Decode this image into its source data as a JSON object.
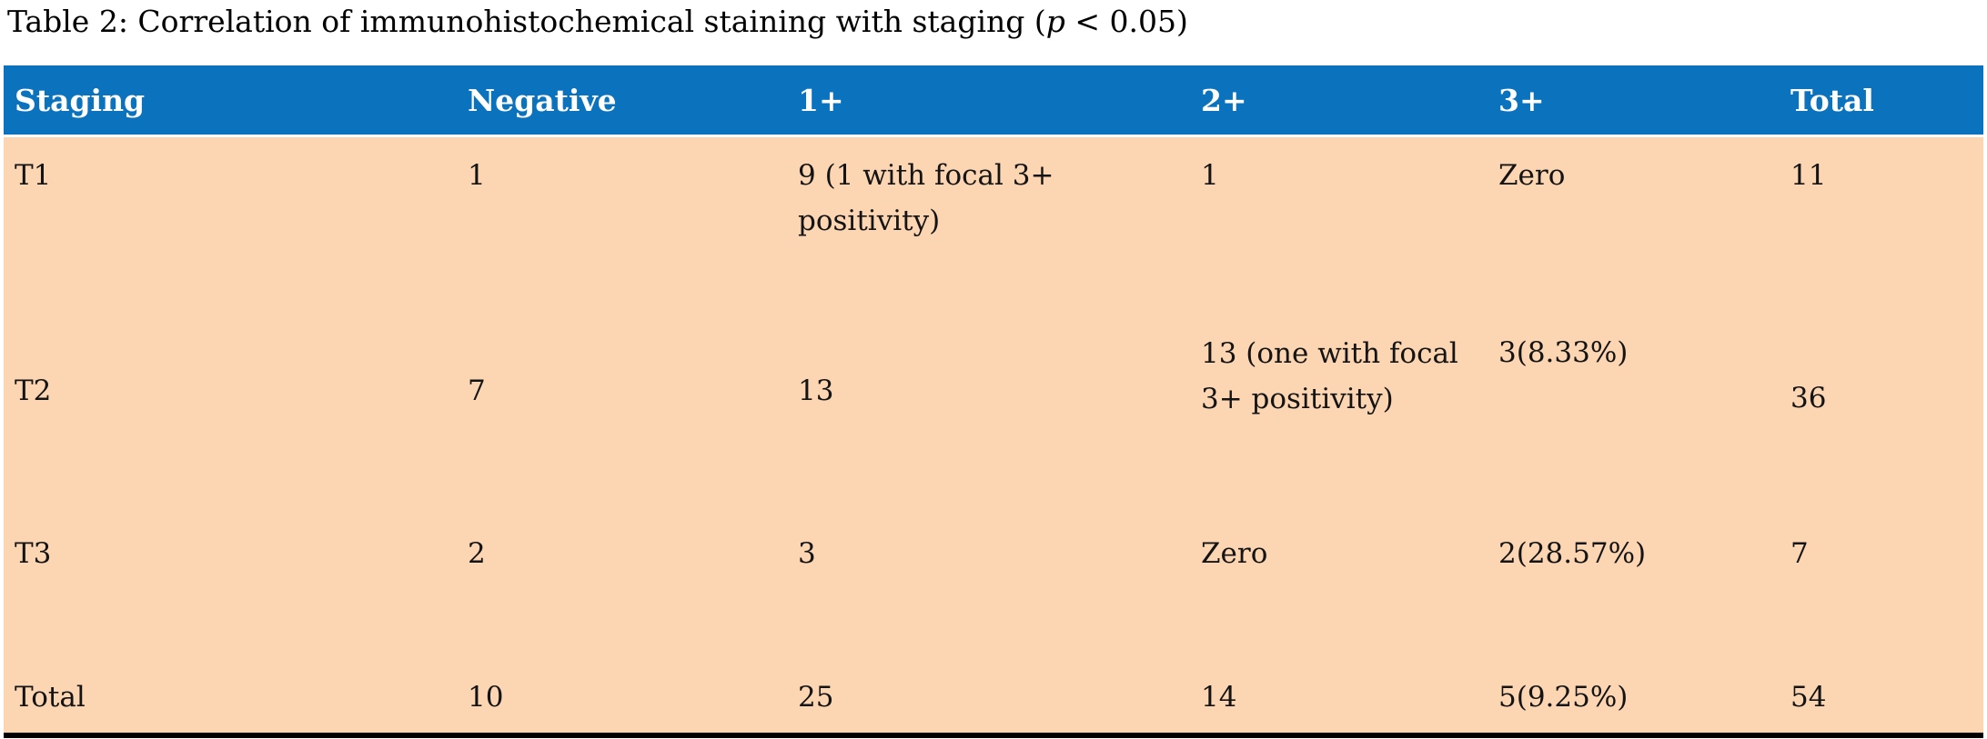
{
  "caption": {
    "before_p": "Table 2: Correlation of immunohistochemical staining with staging (",
    "p_var": "p",
    "after_p": " < 0.05)"
  },
  "colors": {
    "header_bg": "#0B72BD",
    "header_text": "#FFFFFF",
    "body_bg": "#FCD5B2",
    "body_text": "#141414",
    "bottom_rule": "#000000"
  },
  "table": {
    "columns": [
      "Staging",
      "Negative",
      "1+",
      "2+",
      "3+",
      "Total"
    ],
    "rows": [
      {
        "staging": "T1",
        "negative": "1",
        "one_plus": "9 (1 with focal 3+ positivity)",
        "two_plus": "1",
        "three_plus": "Zero",
        "total": "11"
      },
      {
        "staging": "T2",
        "negative": "7",
        "one_plus": "13",
        "two_plus": "13 (one with focal 3+ positivity)",
        "three_plus": "3(8.33%)",
        "total": "36"
      },
      {
        "staging": "T3",
        "negative": "2",
        "one_plus": "3",
        "two_plus": "Zero",
        "three_plus": "2(28.57%)",
        "total": "7"
      },
      {
        "staging": "Total",
        "negative": "10",
        "one_plus": "25",
        "two_plus": "14",
        "three_plus": "5(9.25%)",
        "total": "54"
      }
    ]
  }
}
